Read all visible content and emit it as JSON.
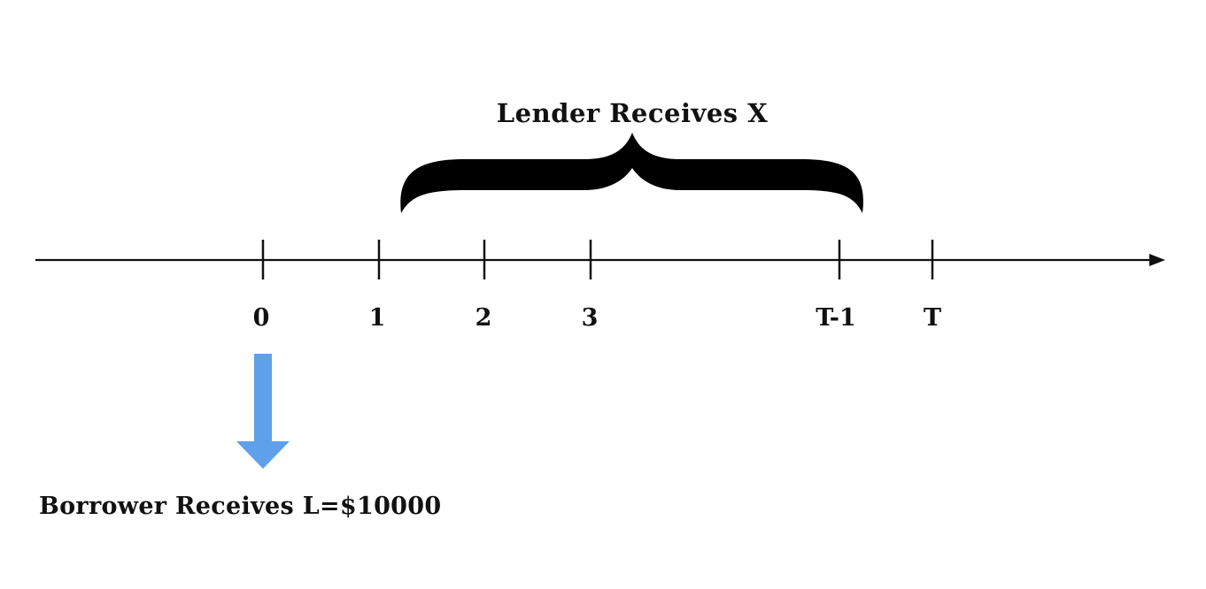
{
  "timeline": {
    "ticks": [
      "0",
      "1",
      "2",
      "3",
      "T-1",
      "T"
    ]
  },
  "lender": {
    "label": "Lender Receives X"
  },
  "borrower": {
    "label": "Borrower Receives L=$10000",
    "arrow_color": "#5ea0ea"
  },
  "colors": {
    "line": "#111111",
    "background": "#ffffff"
  }
}
